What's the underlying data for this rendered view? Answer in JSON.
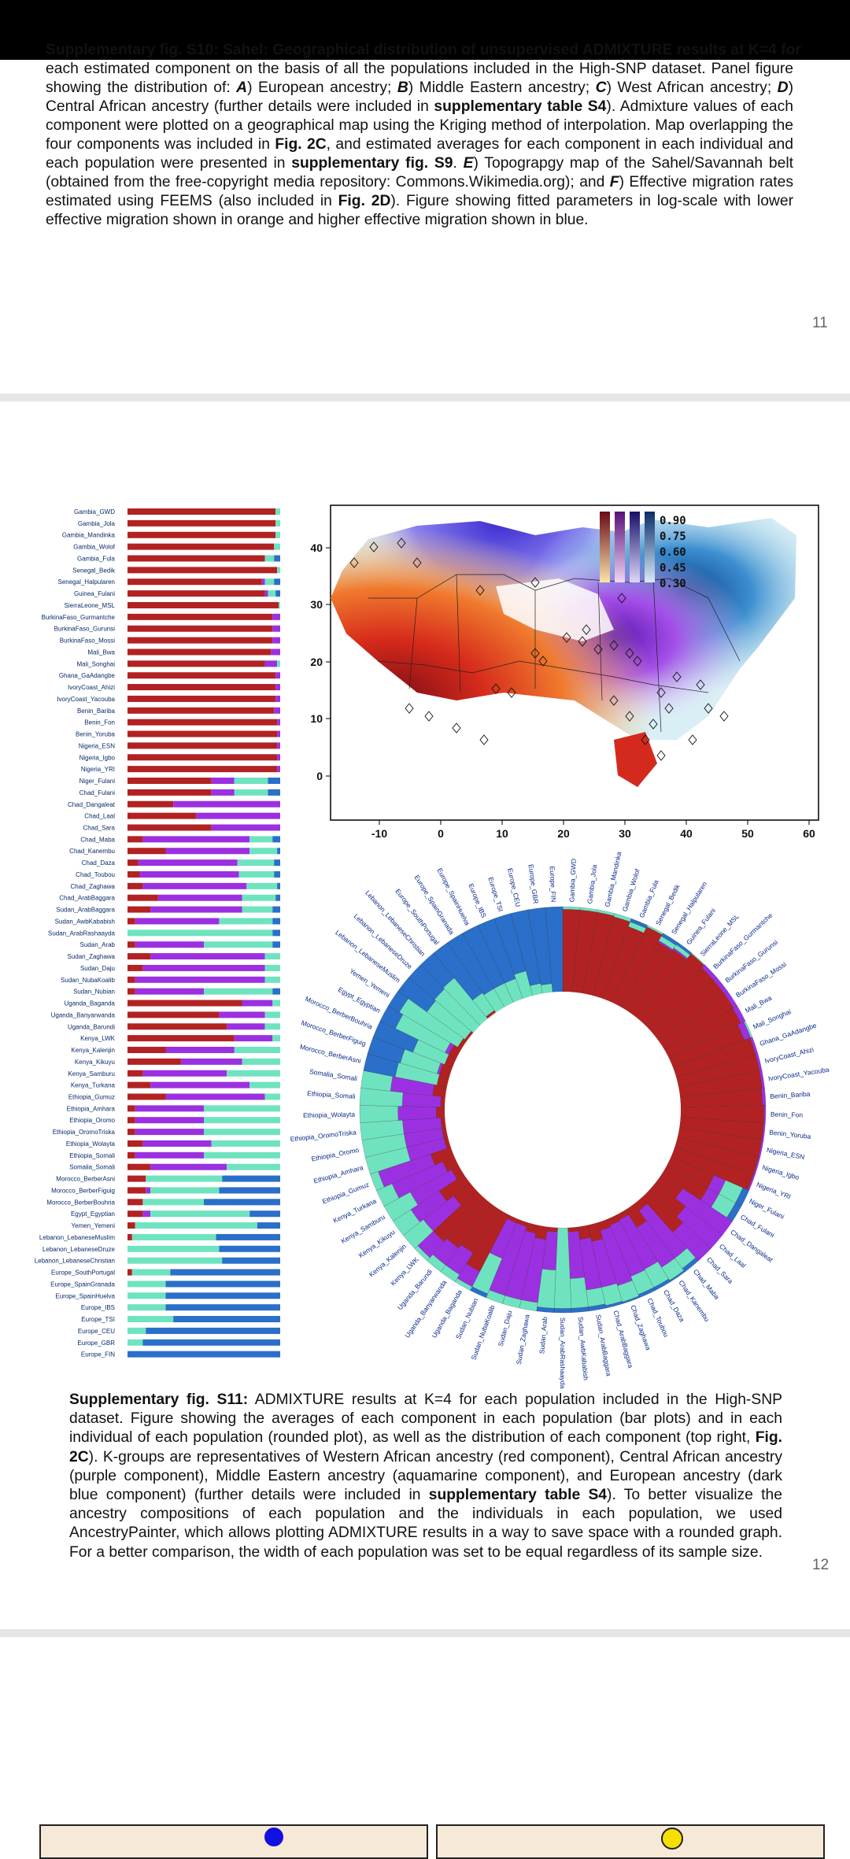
{
  "caption_s10": {
    "cut_line": "Supplementary fig. S10: Sahel: Geographical distribution of unsupervised ADMIXTURE results at K=4 for",
    "part1": "each estimated component on the basis of all the populations included in the High-SNP dataset. Panel figure showing the distribution of: ",
    "a": "A",
    "part2": ") European ancestry; ",
    "b": "B",
    "part3": ") Middle Eastern ancestry; ",
    "c": "C",
    "part4": ") West African ancestry; ",
    "d": "D",
    "part5": ") Central African ancestry (further details were included in ",
    "table_ref": "supplementary table S4",
    "part6": "). Admixture values of each component were plotted on a geographical map using the Kriging method of interpolation. Map overlapping the four components was included in ",
    "fig_ref": "Fig. 2C",
    "part7": ", and estimated averages for each component in each individual and each population were presented in ",
    "fig_ref2": "supplementary fig. S9",
    "part8": ". ",
    "e": "E",
    "part9": ") Topograpgy map of the Sahel/Savannah belt (obtained from the free-copyright media repository: Commons.Wikimedia.org); and ",
    "f": "F",
    "part10": ") Effective migration rates estimated using FEEMS (also included in ",
    "fig_ref3": "Fig. 2D",
    "part11": "). Figure showing fitted parameters in log-scale with lower effective migration shown in orange and higher effective migration shown in blue."
  },
  "page_number_1": "11",
  "page_number_2": "12",
  "map": {
    "x_ticks": [
      "-10",
      "0",
      "10",
      "20",
      "30",
      "40",
      "50",
      "60"
    ],
    "y_ticks": [
      "40",
      "30",
      "20",
      "10",
      "0"
    ],
    "legend_values": [
      "0.90",
      "0.75",
      "0.60",
      "0.45",
      "0.30"
    ]
  },
  "colors": {
    "west_african_red": "#b22222",
    "central_african_purple": "#9b30e0",
    "middle_eastern_aquamarine": "#6fe3c0",
    "european_blue": "#2a6fc9"
  },
  "populations": [
    "Gambia_GWD",
    "Gambia_Jola",
    "Gambia_Mandinka",
    "Gambia_Wolof",
    "Gambia_Fula",
    "Senegal_Bedik",
    "Senegal_Halpularen",
    "Guinea_Fulani",
    "SierraLeone_MSL",
    "BurkinaFaso_Gurmantche",
    "BurkinaFaso_Gurunsi",
    "BurkinaFaso_Mossi",
    "Mali_Bwa",
    "Mali_Songhai",
    "Ghana_GaAdangbe",
    "IvoryCoast_Ahizi",
    "IvoryCoast_Yacouba",
    "Benin_Bariba",
    "Benin_Fon",
    "Benin_Yoruba",
    "Nigeria_ESN",
    "Nigeria_Igbo",
    "Nigeria_YRI",
    "Niger_Fulani",
    "Chad_Fulani",
    "Chad_Dangaleat",
    "Chad_Laal",
    "Chad_Sara",
    "Chad_Maba",
    "Chad_Kanembu",
    "Chad_Daza",
    "Chad_Toubou",
    "Chad_Zaghawa",
    "Chad_ArabBaggara",
    "Sudan_ArabBaggara",
    "Sudan_AwbKababish",
    "Sudan_ArabRashaayda",
    "Sudan_Arab",
    "Sudan_Zaghawa",
    "Sudan_Daju",
    "Sudan_NubaKoalib",
    "Sudan_Nubian",
    "Uganda_Baganda",
    "Uganda_Banyarwanda",
    "Uganda_Barundi",
    "Kenya_LWK",
    "Kenya_Kalenjin",
    "Kenya_Kikuyu",
    "Kenya_Samburu",
    "Kenya_Turkana",
    "Ethiopia_Gumuz",
    "Ethiopia_Amhara",
    "Ethiopia_Oromo",
    "Ethiopia_OromoTriska",
    "Ethiopia_Wolayta",
    "Ethiopia_Somali",
    "Somalia_Somali",
    "Morocco_BerberAsni",
    "Morocco_BerberFiguig",
    "Morocco_BerberBouhria",
    "Egypt_Egyptian",
    "Yemen_Yemeni",
    "Lebanon_LebaneseMuslim",
    "Lebanon_LebaneseDruze",
    "Lebanon_LebaneseChristian",
    "Europe_SouthPortugal",
    "Europe_SpainGranada",
    "Europe_SpainHuelva",
    "Europe_IBS",
    "Europe_TSI",
    "Europe_CEU",
    "Europe_GBR",
    "Europe_FIN"
  ],
  "admixture_bars": [
    [
      0.97,
      0.0,
      0.03,
      0.0
    ],
    [
      0.97,
      0.0,
      0.03,
      0.0
    ],
    [
      0.97,
      0.0,
      0.03,
      0.0
    ],
    [
      0.96,
      0.0,
      0.04,
      0.0
    ],
    [
      0.9,
      0.0,
      0.06,
      0.04
    ],
    [
      0.98,
      0.0,
      0.02,
      0.0
    ],
    [
      0.88,
      0.02,
      0.06,
      0.04
    ],
    [
      0.9,
      0.02,
      0.05,
      0.03
    ],
    [
      0.99,
      0.0,
      0.01,
      0.0
    ],
    [
      0.95,
      0.05,
      0.0,
      0.0
    ],
    [
      0.95,
      0.05,
      0.0,
      0.0
    ],
    [
      0.95,
      0.05,
      0.0,
      0.0
    ],
    [
      0.94,
      0.06,
      0.0,
      0.0
    ],
    [
      0.9,
      0.08,
      0.02,
      0.0
    ],
    [
      0.97,
      0.03,
      0.0,
      0.0
    ],
    [
      0.97,
      0.03,
      0.0,
      0.0
    ],
    [
      0.97,
      0.03,
      0.0,
      0.0
    ],
    [
      0.96,
      0.04,
      0.0,
      0.0
    ],
    [
      0.98,
      0.02,
      0.0,
      0.0
    ],
    [
      0.98,
      0.02,
      0.0,
      0.0
    ],
    [
      0.98,
      0.02,
      0.0,
      0.0
    ],
    [
      0.98,
      0.02,
      0.0,
      0.0
    ],
    [
      0.98,
      0.02,
      0.0,
      0.0
    ],
    [
      0.55,
      0.15,
      0.22,
      0.08
    ],
    [
      0.55,
      0.15,
      0.22,
      0.08
    ],
    [
      0.3,
      0.7,
      0.0,
      0.0
    ],
    [
      0.45,
      0.55,
      0.0,
      0.0
    ],
    [
      0.55,
      0.45,
      0.0,
      0.0
    ],
    [
      0.1,
      0.7,
      0.15,
      0.05
    ],
    [
      0.25,
      0.55,
      0.18,
      0.02
    ],
    [
      0.07,
      0.65,
      0.24,
      0.04
    ],
    [
      0.08,
      0.65,
      0.23,
      0.04
    ],
    [
      0.1,
      0.68,
      0.2,
      0.02
    ],
    [
      0.2,
      0.55,
      0.22,
      0.03
    ],
    [
      0.15,
      0.6,
      0.2,
      0.05
    ],
    [
      0.05,
      0.55,
      0.35,
      0.05
    ],
    [
      0.0,
      0.0,
      0.95,
      0.05
    ],
    [
      0.05,
      0.45,
      0.45,
      0.05
    ],
    [
      0.15,
      0.75,
      0.1,
      0.0
    ],
    [
      0.1,
      0.8,
      0.1,
      0.0
    ],
    [
      0.05,
      0.85,
      0.1,
      0.0
    ],
    [
      0.05,
      0.45,
      0.45,
      0.05
    ],
    [
      0.75,
      0.2,
      0.05,
      0.0
    ],
    [
      0.6,
      0.3,
      0.1,
      0.0
    ],
    [
      0.65,
      0.25,
      0.1,
      0.0
    ],
    [
      0.7,
      0.25,
      0.05,
      0.0
    ],
    [
      0.25,
      0.45,
      0.3,
      0.0
    ],
    [
      0.35,
      0.4,
      0.25,
      0.0
    ],
    [
      0.1,
      0.55,
      0.35,
      0.0
    ],
    [
      0.15,
      0.65,
      0.2,
      0.0
    ],
    [
      0.25,
      0.65,
      0.1,
      0.0
    ],
    [
      0.05,
      0.45,
      0.5,
      0.0
    ],
    [
      0.05,
      0.45,
      0.5,
      0.0
    ],
    [
      0.05,
      0.45,
      0.5,
      0.0
    ],
    [
      0.1,
      0.45,
      0.45,
      0.0
    ],
    [
      0.05,
      0.45,
      0.5,
      0.0
    ],
    [
      0.15,
      0.5,
      0.35,
      0.0
    ],
    [
      0.12,
      0.0,
      0.5,
      0.38
    ],
    [
      0.12,
      0.03,
      0.45,
      0.4
    ],
    [
      0.1,
      0.0,
      0.4,
      0.5
    ],
    [
      0.1,
      0.05,
      0.65,
      0.2
    ],
    [
      0.05,
      0.0,
      0.8,
      0.15
    ],
    [
      0.03,
      0.0,
      0.55,
      0.42
    ],
    [
      0.0,
      0.0,
      0.6,
      0.4
    ],
    [
      0.0,
      0.0,
      0.62,
      0.38
    ],
    [
      0.03,
      0.0,
      0.25,
      0.72
    ],
    [
      0.0,
      0.0,
      0.25,
      0.75
    ],
    [
      0.0,
      0.0,
      0.25,
      0.75
    ],
    [
      0.0,
      0.0,
      0.25,
      0.75
    ],
    [
      0.0,
      0.0,
      0.3,
      0.7
    ],
    [
      0.0,
      0.0,
      0.12,
      0.88
    ],
    [
      0.0,
      0.0,
      0.1,
      0.9
    ],
    [
      0.0,
      0.0,
      0.0,
      1.0
    ]
  ],
  "caption_s11": {
    "label": "Supplementary fig. S11:",
    "part1": " ADMIXTURE results at K=4 for each population included in the High-SNP dataset. Figure showing the averages of each component in each population (bar plots) and in each individual of each population (rounded plot), as well as the distribution of each component (top right, ",
    "fig_ref": "Fig. 2C",
    "part2": "). K-groups are representatives of Western African ancestry (red component), Central African ancestry (purple component), Middle Eastern ancestry (aquamarine component), and European ancestry (dark blue component) (further details were included in ",
    "table_ref": "supplementary table S4",
    "part3": "). To better visualize the ancestry compositions of each population and the individuals in each population, we used AncestryPainter, which allows plotting ADMIXTURE results in a way to save space with a rounded graph. For a better comparison, the width of each population was set to be equal regardless of its sample size."
  }
}
